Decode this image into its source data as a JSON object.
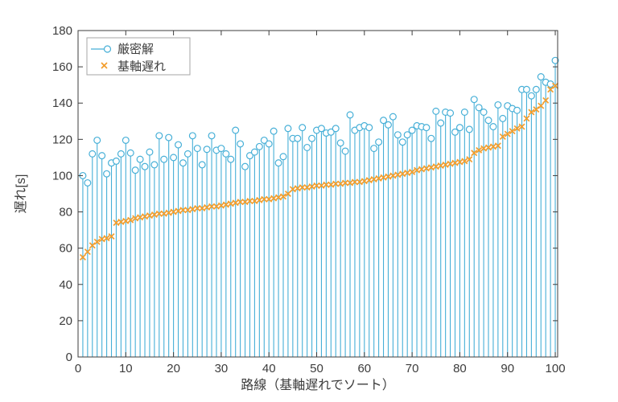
{
  "chart_data": {
    "type": "stem",
    "title": "",
    "xlabel": "路線（基軸遅れでソート）",
    "ylabel": "遅れ[s]",
    "xlim": [
      0,
      100.5
    ],
    "ylim": [
      0,
      180
    ],
    "xticks": [
      0,
      10,
      20,
      30,
      40,
      50,
      60,
      70,
      80,
      90,
      100
    ],
    "yticks": [
      0,
      20,
      40,
      60,
      80,
      100,
      120,
      140,
      160,
      180
    ],
    "grid": false,
    "legend_position": "top-left-inside",
    "axis_color": "#3c3c3c",
    "legend_border_color": "#a6a6a6",
    "x": [
      1,
      2,
      3,
      4,
      5,
      6,
      7,
      8,
      9,
      10,
      11,
      12,
      13,
      14,
      15,
      16,
      17,
      18,
      19,
      20,
      21,
      22,
      23,
      24,
      25,
      26,
      27,
      28,
      29,
      30,
      31,
      32,
      33,
      34,
      35,
      36,
      37,
      38,
      39,
      40,
      41,
      42,
      43,
      44,
      45,
      46,
      47,
      48,
      49,
      50,
      51,
      52,
      53,
      54,
      55,
      56,
      57,
      58,
      59,
      60,
      61,
      62,
      63,
      64,
      65,
      66,
      67,
      68,
      69,
      70,
      71,
      72,
      73,
      74,
      75,
      76,
      77,
      78,
      79,
      80,
      81,
      82,
      83,
      84,
      85,
      86,
      87,
      88,
      89,
      90,
      91,
      92,
      93,
      94,
      95,
      96,
      97,
      98,
      99,
      100
    ],
    "series": [
      {
        "name": "厳密解",
        "marker": "open-circle-with-stem",
        "color": "#46afd7",
        "values": [
          100,
          96,
          112,
          119.5,
          111,
          101,
          107,
          108,
          112,
          119.5,
          112.5,
          103,
          109,
          105,
          113,
          106,
          122,
          109,
          121,
          110,
          117,
          107,
          112,
          122,
          115,
          106,
          114.5,
          122,
          114,
          115,
          112,
          109,
          125,
          117.5,
          105,
          111,
          113,
          116,
          119.5,
          117.5,
          124.5,
          107,
          110.5,
          126,
          120.5,
          120.5,
          126.5,
          115.5,
          120.5,
          125,
          126,
          123.5,
          124,
          126,
          118,
          113.5,
          133.5,
          125,
          126.5,
          127.5,
          126.5,
          115,
          118.5,
          130.5,
          128,
          132.5,
          122.5,
          118.5,
          122.5,
          125,
          127.5,
          127,
          126.5,
          120.5,
          135.5,
          129,
          135,
          134.5,
          124,
          126.5,
          135,
          125.5,
          142,
          137.5,
          135,
          130.5,
          127,
          139,
          131.5,
          138.5,
          137,
          136,
          147.5,
          147.5,
          144,
          147.5,
          154.5,
          151.5,
          150.5,
          163.5
        ]
      },
      {
        "name": "基軸遅れ",
        "marker": "x",
        "color": "#f29e2e",
        "values": [
          55,
          58,
          61.5,
          63.5,
          65,
          65.5,
          66.5,
          74,
          74.5,
          75,
          75.5,
          76.5,
          77,
          77.5,
          78,
          78.5,
          79,
          79,
          79.5,
          80,
          80.5,
          81,
          81,
          81.5,
          82,
          82,
          82.5,
          83,
          83,
          83.5,
          84,
          84.5,
          85,
          85.5,
          85.5,
          86,
          86,
          86.5,
          87,
          87,
          87.5,
          88,
          88.5,
          90,
          92.5,
          93,
          93.5,
          93.5,
          94,
          94.5,
          94.5,
          95,
          95,
          95.5,
          95.5,
          96,
          96,
          96.5,
          96.5,
          97,
          97.5,
          98,
          98.5,
          99,
          99.5,
          100,
          100.5,
          101,
          101.5,
          102,
          103,
          103.5,
          104,
          104.5,
          105,
          105.5,
          106,
          106.5,
          107,
          107.5,
          108,
          109,
          112.5,
          114,
          115,
          115.5,
          116,
          116.5,
          121.5,
          123,
          124.5,
          126,
          127,
          131.5,
          135,
          136.5,
          138.5,
          141.5,
          147.5,
          149.5
        ]
      }
    ]
  }
}
